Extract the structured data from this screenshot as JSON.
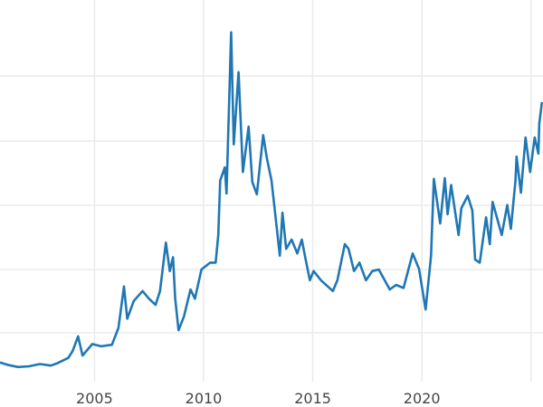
{
  "chart_data": {
    "type": "line",
    "title": "",
    "xlabel": "",
    "ylabel": "",
    "grid": true,
    "line_color": "#1f77b4",
    "grid_color": "#ebebeb",
    "xlim": [
      2000.67,
      2025.55
    ],
    "ylim": [
      -0.8,
      52.2
    ],
    "x_tick_labels": [
      "2005",
      "2010",
      "2015",
      "2020"
    ],
    "x_ticks": [
      2005,
      2010,
      2015,
      2020,
      2025
    ],
    "series": [
      {
        "x": [
          2000.67,
          2001.0,
          2001.5,
          2002.0,
          2002.5,
          2003.0,
          2003.3,
          2003.8,
          2004.0,
          2004.25,
          2004.45,
          2004.9,
          2005.3,
          2005.8,
          2006.1,
          2006.35,
          2006.5,
          2006.8,
          2007.2,
          2007.5,
          2007.8,
          2008.0,
          2008.27,
          2008.45,
          2008.6,
          2008.7,
          2008.85,
          2009.1,
          2009.4,
          2009.6,
          2009.9,
          2010.3,
          2010.55,
          2010.67,
          2010.76,
          2010.97,
          2011.05,
          2011.26,
          2011.38,
          2011.6,
          2011.8,
          2012.06,
          2012.23,
          2012.44,
          2012.73,
          2012.9,
          2013.11,
          2013.32,
          2013.49,
          2013.61,
          2013.78,
          2014.03,
          2014.29,
          2014.5,
          2014.66,
          2014.87,
          2015.04,
          2015.38,
          2015.92,
          2016.13,
          2016.47,
          2016.64,
          2016.89,
          2017.14,
          2017.44,
          2017.73,
          2018.03,
          2018.53,
          2018.82,
          2019.16,
          2019.58,
          2019.87,
          2020.17,
          2020.42,
          2020.55,
          2020.84,
          2021.05,
          2021.18,
          2021.34,
          2021.68,
          2021.81,
          2022.1,
          2022.31,
          2022.44,
          2022.65,
          2022.94,
          2023.11,
          2023.24,
          2023.66,
          2023.91,
          2024.08,
          2024.29,
          2024.34,
          2024.54,
          2024.75,
          2024.96,
          2025.17,
          2025.34,
          2025.38,
          2025.5
        ],
        "y": [
          5.0,
          4.7,
          4.4,
          4.5,
          4.8,
          4.6,
          4.9,
          5.6,
          6.5,
          8.4,
          5.9,
          7.4,
          7.1,
          7.3,
          9.5,
          14.9,
          10.7,
          13.0,
          14.3,
          13.3,
          12.5,
          14.3,
          20.6,
          16.9,
          18.7,
          13.3,
          9.2,
          11.0,
          14.5,
          13.3,
          17.1,
          18.0,
          18.0,
          21.6,
          28.7,
          30.4,
          27.0,
          48.0,
          33.4,
          42.8,
          29.8,
          35.7,
          28.5,
          26.9,
          34.6,
          31.6,
          28.7,
          23.3,
          18.9,
          24.5,
          19.8,
          21.0,
          19.2,
          21.0,
          18.6,
          15.7,
          16.9,
          15.7,
          14.3,
          15.7,
          20.4,
          19.8,
          16.9,
          18.0,
          15.7,
          16.9,
          17.1,
          14.5,
          15.1,
          14.7,
          19.2,
          17.2,
          11.9,
          18.9,
          28.9,
          23.1,
          29.0,
          24.3,
          28.1,
          21.6,
          25.1,
          26.7,
          24.8,
          18.4,
          18.0,
          23.9,
          20.4,
          25.9,
          21.6,
          25.5,
          22.4,
          28.7,
          31.8,
          27.1,
          34.3,
          29.8,
          34.3,
          32.2,
          36.1,
          38.9
        ]
      }
    ]
  }
}
